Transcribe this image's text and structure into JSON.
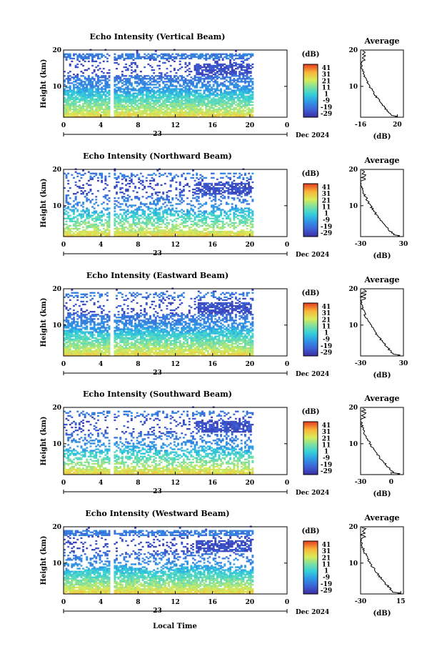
{
  "figure": {
    "xlabel": "Local Time",
    "date_label": "Dec 2024",
    "day_label": "23",
    "colorbar_unit": "(dB)",
    "colorbar_ticks": [
      "41",
      "31",
      "21",
      "11",
      "1",
      "-9",
      "-19",
      "-29"
    ],
    "average_title": "Average",
    "average_xlabel": "(dB)"
  },
  "chart_data": [
    {
      "type": "heatmap",
      "title": "Echo Intensity (Vertical Beam)",
      "ylabel": "Height (km)",
      "x_ticks": [
        "0",
        "4",
        "8",
        "12",
        "16",
        "20",
        "0"
      ],
      "y_ticks": [
        "20",
        "10"
      ],
      "xlim": [
        0,
        24
      ],
      "ylim": [
        1.5,
        20
      ],
      "data_end_hour": 20.2,
      "colorscale_range": [
        -29,
        41
      ],
      "average_profile": {
        "xlim": [
          -16,
          26
        ],
        "x_ticks": [
          "-16",
          "20"
        ],
        "y_ticks": [
          "20",
          "10"
        ],
        "peak_near_surface": 22,
        "tropopause_km": 17
      }
    },
    {
      "type": "heatmap",
      "title": "Echo Intensity (Northward Beam)",
      "ylabel": "Height (km)",
      "x_ticks": [
        "0",
        "4",
        "8",
        "12",
        "16",
        "20",
        "0"
      ],
      "y_ticks": [
        "20",
        "10"
      ],
      "xlim": [
        0,
        24
      ],
      "ylim": [
        1.5,
        20
      ],
      "data_end_hour": 20.2,
      "colorscale_range": [
        -29,
        41
      ],
      "average_profile": {
        "xlim": [
          -30,
          30
        ],
        "x_ticks": [
          "-30",
          "30"
        ],
        "y_ticks": [
          "20",
          "10"
        ],
        "peak_near_surface": 28,
        "tropopause_km": 17
      }
    },
    {
      "type": "heatmap",
      "title": "Echo Intensity (Eastward Beam)",
      "ylabel": "Height (km)",
      "x_ticks": [
        "0",
        "4",
        "8",
        "12",
        "16",
        "20",
        "0"
      ],
      "y_ticks": [
        "20",
        "10"
      ],
      "xlim": [
        0,
        24
      ],
      "ylim": [
        1.5,
        20
      ],
      "data_end_hour": 20.2,
      "colorscale_range": [
        -29,
        41
      ],
      "average_profile": {
        "xlim": [
          -30,
          30
        ],
        "x_ticks": [
          "-30",
          "30"
        ],
        "y_ticks": [
          "20",
          "10"
        ],
        "peak_near_surface": 28,
        "tropopause_km": 17
      }
    },
    {
      "type": "heatmap",
      "title": "Echo Intensity (Southward Beam)",
      "ylabel": "Height (km)",
      "x_ticks": [
        "0",
        "4",
        "8",
        "12",
        "16",
        "20",
        "0"
      ],
      "y_ticks": [
        "20",
        "10"
      ],
      "xlim": [
        0,
        24
      ],
      "ylim": [
        1.5,
        20
      ],
      "data_end_hour": 20.2,
      "colorscale_range": [
        -29,
        41
      ],
      "average_profile": {
        "xlim": [
          -30,
          12
        ],
        "x_ticks": [
          "-30",
          "0"
        ],
        "y_ticks": [
          "20",
          "10"
        ],
        "peak_near_surface": 10,
        "tropopause_km": 17
      }
    },
    {
      "type": "heatmap",
      "title": "Echo Intensity (Westward Beam)",
      "ylabel": "Height (km)",
      "x_ticks": [
        "0",
        "4",
        "8",
        "12",
        "16",
        "20",
        "0"
      ],
      "y_ticks": [
        "20",
        "10"
      ],
      "xlim": [
        0,
        24
      ],
      "ylim": [
        1.5,
        20
      ],
      "data_end_hour": 20.2,
      "colorscale_range": [
        -29,
        41
      ],
      "average_profile": {
        "xlim": [
          -30,
          18
        ],
        "x_ticks": [
          "-30",
          "15"
        ],
        "y_ticks": [
          "20",
          "10"
        ],
        "peak_near_surface": 16,
        "tropopause_km": 17
      }
    }
  ]
}
